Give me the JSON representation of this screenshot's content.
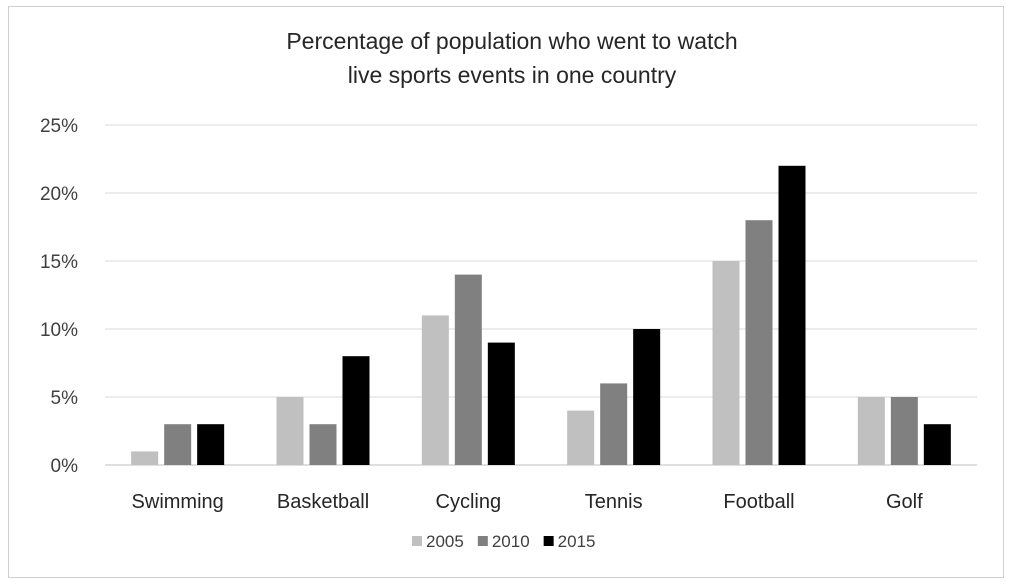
{
  "chart_data": {
    "type": "bar",
    "title_lines": [
      "Percentage of population who went to watch",
      "live sports events in one country"
    ],
    "categories": [
      "Swimming",
      "Basketball",
      "Cycling",
      "Tennis",
      "Football",
      "Golf"
    ],
    "series": [
      {
        "name": "2005",
        "color": "#c0c0c0",
        "values": [
          1,
          5,
          11,
          4,
          15,
          5
        ]
      },
      {
        "name": "2010",
        "color": "#808080",
        "values": [
          3,
          3,
          14,
          6,
          18,
          5
        ]
      },
      {
        "name": "2015",
        "color": "#000000",
        "values": [
          3,
          8,
          9,
          10,
          22,
          3
        ]
      }
    ],
    "ylim": [
      0,
      25
    ],
    "yticks": [
      0,
      5,
      10,
      15,
      20,
      25
    ],
    "ytick_labels": [
      "0%",
      "5%",
      "10%",
      "15%",
      "20%",
      "25%"
    ],
    "xlabel": "",
    "ylabel": "",
    "grid": true,
    "legend_position": "bottom"
  }
}
